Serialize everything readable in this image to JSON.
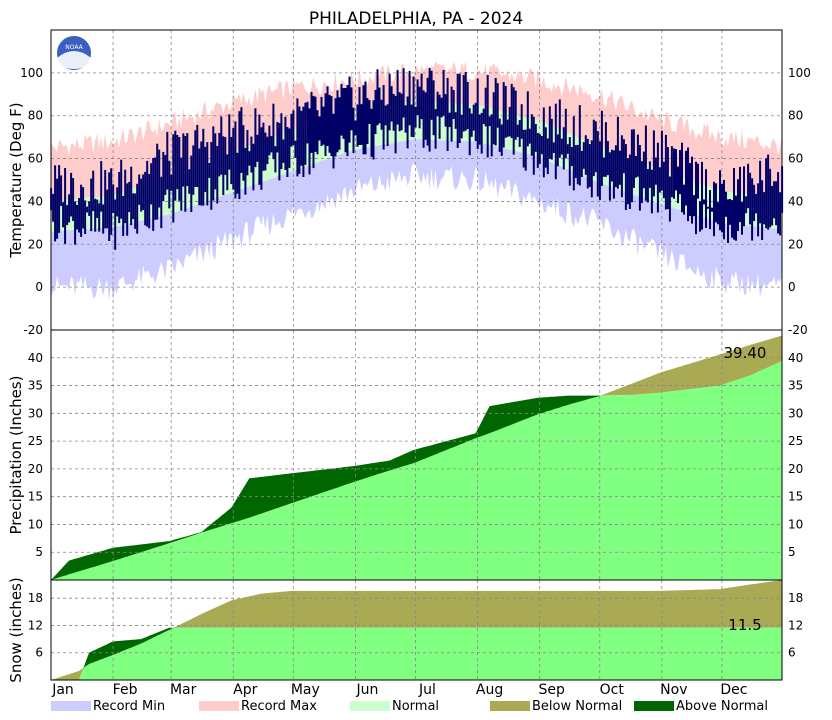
{
  "chart_data": {
    "type": "area",
    "title": "PHILADELPHIA, PA - 2024",
    "months": [
      "Jan",
      "Feb",
      "Mar",
      "Apr",
      "May",
      "Jun",
      "Jul",
      "Aug",
      "Sep",
      "Oct",
      "Nov",
      "Dec"
    ],
    "colors": {
      "record_min": "#ccccff",
      "record_max": "#ffcccc",
      "normal": "#ccffcc",
      "observed_temp": "#000066",
      "below_normal": "#aaaa55",
      "above_normal": "#006600",
      "precip_fill": "#80ff80"
    },
    "legend": [
      {
        "label": "Record Min",
        "color": "#ccccff"
      },
      {
        "label": "Record Max",
        "color": "#ffcccc"
      },
      {
        "label": "Normal",
        "color": "#ccffcc"
      },
      {
        "label": "Below Normal",
        "color": "#aaaa55"
      },
      {
        "label": "Above Normal",
        "color": "#006600"
      }
    ],
    "temperature": {
      "ylabel": "Temperature (Deg F)",
      "ylim": [
        -20,
        120
      ],
      "ticks": [
        -20,
        0,
        20,
        40,
        60,
        80,
        100
      ],
      "day_of_year": [
        1,
        32,
        60,
        91,
        121,
        152,
        182,
        213,
        244,
        274,
        305,
        335,
        366
      ],
      "record_max": [
        65,
        68,
        76,
        86,
        93,
        97,
        101,
        101,
        97,
        90,
        78,
        70,
        66
      ],
      "normal_high": [
        40,
        43,
        51,
        63,
        73,
        82,
        87,
        85,
        78,
        66,
        55,
        45,
        41
      ],
      "normal_low": [
        26,
        28,
        34,
        44,
        54,
        64,
        69,
        68,
        61,
        49,
        39,
        30,
        27
      ],
      "record_min": [
        0,
        0,
        8,
        22,
        34,
        45,
        52,
        50,
        40,
        30,
        15,
        3,
        0
      ],
      "observed_high": [
        48,
        48,
        62,
        72,
        78,
        88,
        95,
        90,
        80,
        72,
        64,
        44,
        55
      ],
      "observed_low": [
        30,
        26,
        38,
        48,
        58,
        66,
        72,
        70,
        60,
        48,
        40,
        28,
        32
      ]
    },
    "precipitation": {
      "ylabel": "Precipitation (Inches)",
      "ylim": [
        0,
        45
      ],
      "ticks": [
        5,
        10,
        15,
        20,
        25,
        30,
        35,
        40
      ],
      "annotation": "39.40",
      "day_of_year": [
        1,
        10,
        32,
        60,
        76,
        91,
        100,
        121,
        152,
        170,
        182,
        213,
        220,
        244,
        260,
        274,
        290,
        305,
        335,
        350,
        366
      ],
      "normal_cumulative": [
        0,
        1.0,
        3.4,
        6.6,
        8.5,
        10.2,
        11.2,
        13.8,
        17.6,
        19.7,
        21.0,
        25.5,
        26.4,
        29.8,
        31.6,
        33.0,
        35.2,
        37.3,
        40.6,
        42.3,
        44.0
      ],
      "observed_cumulative": [
        0,
        3.5,
        5.8,
        7.0,
        8.6,
        13.0,
        18.3,
        19.2,
        20.5,
        21.5,
        23.4,
        26.4,
        31.3,
        32.8,
        33.2,
        33.2,
        33.3,
        33.7,
        35.0,
        36.8,
        39.4
      ]
    },
    "snow": {
      "ylabel": "Snow (inches)",
      "ylim": [
        0,
        22
      ],
      "ticks": [
        6,
        12,
        18
      ],
      "annotation": "11.5",
      "day_of_year": [
        1,
        15,
        20,
        32,
        46,
        60,
        76,
        91,
        106,
        121,
        305,
        335,
        350,
        366
      ],
      "normal_cumulative": [
        0,
        2.0,
        3.5,
        5.5,
        8.0,
        11.0,
        14.5,
        17.5,
        19.0,
        19.6,
        19.6,
        20.0,
        21.0,
        22.0
      ],
      "observed_cumulative": [
        0,
        0,
        6.0,
        8.5,
        9.0,
        11.5,
        11.5,
        11.5,
        11.5,
        11.5,
        11.5,
        11.5,
        11.5,
        11.5
      ]
    }
  },
  "logo": {
    "text": "NOAA"
  }
}
